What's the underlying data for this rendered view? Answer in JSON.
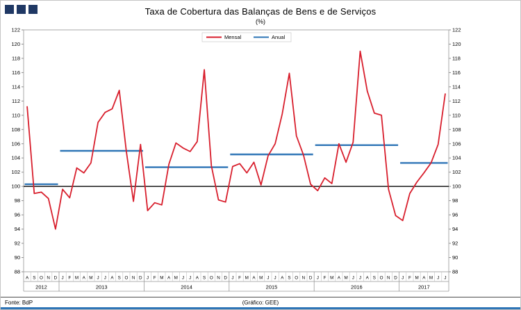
{
  "header": {
    "logo_squares": 3
  },
  "legend": {
    "series1": "Mensal",
    "series2": "Anual",
    "position": "top-center"
  },
  "footer": {
    "source": "Fonte: BdP",
    "credit": "(Gráfico: GEE)"
  },
  "colors": {
    "monthly": "#d81e2c",
    "annual": "#2e75b6",
    "baseline": "#000000",
    "axis": "#8a8a8a",
    "logo": "#1f3864",
    "bottom_bar": "#2e75b6"
  },
  "chart_data": {
    "type": "line",
    "title": "Taxa de Cobertura das Balanças de Bens e de Serviços",
    "subtitle": "(%)",
    "xlabel": "",
    "ylabel": "",
    "ylim": [
      88,
      122
    ],
    "ytick_step": 2,
    "baseline": 100,
    "grid": false,
    "series": [
      {
        "name": "Mensal",
        "color": "#d81e2c",
        "style": "monthly line"
      },
      {
        "name": "Anual",
        "color": "#2e75b6",
        "style": "horizontal yearly segments"
      }
    ],
    "groups": [
      {
        "year": "2012",
        "months": [
          "A",
          "S",
          "O",
          "N",
          "D"
        ],
        "values": [
          111.2,
          99.0,
          99.2,
          98.3,
          94.0
        ],
        "annual": 100.3
      },
      {
        "year": "2013",
        "months": [
          "J",
          "F",
          "M",
          "A",
          "M",
          "J",
          "J",
          "A",
          "S",
          "O",
          "N",
          "D"
        ],
        "values": [
          99.6,
          98.4,
          102.6,
          101.9,
          103.3,
          109.0,
          110.4,
          110.9,
          113.5,
          104.9,
          97.9,
          105.9
        ],
        "annual": 105.0
      },
      {
        "year": "2014",
        "months": [
          "J",
          "F",
          "M",
          "A",
          "M",
          "J",
          "J",
          "A",
          "S",
          "O",
          "N",
          "D"
        ],
        "values": [
          96.6,
          97.7,
          97.4,
          103.1,
          106.1,
          105.4,
          104.9,
          106.3,
          116.4,
          102.9,
          98.1,
          97.8
        ],
        "annual": 102.7
      },
      {
        "year": "2015",
        "months": [
          "J",
          "F",
          "M",
          "A",
          "M",
          "J",
          "J",
          "A",
          "S",
          "O",
          "N",
          "D"
        ],
        "values": [
          102.8,
          103.2,
          101.9,
          103.4,
          100.2,
          104.3,
          106.0,
          110.2,
          115.9,
          107.1,
          104.4,
          100.3
        ],
        "annual": 104.5
      },
      {
        "year": "2016",
        "months": [
          "J",
          "F",
          "M",
          "A",
          "M",
          "J",
          "J",
          "A",
          "S",
          "O",
          "N",
          "D"
        ],
        "values": [
          99.4,
          101.2,
          100.4,
          106.0,
          103.4,
          106.2,
          119.0,
          113.4,
          110.3,
          110.0,
          99.6,
          95.9
        ],
        "annual": 105.8
      },
      {
        "year": "2017",
        "months": [
          "J",
          "F",
          "M",
          "A",
          "M",
          "J",
          "J"
        ],
        "values": [
          95.2,
          99.0,
          100.6,
          101.9,
          103.3,
          105.9,
          113.0
        ],
        "annual": 103.3
      }
    ]
  }
}
